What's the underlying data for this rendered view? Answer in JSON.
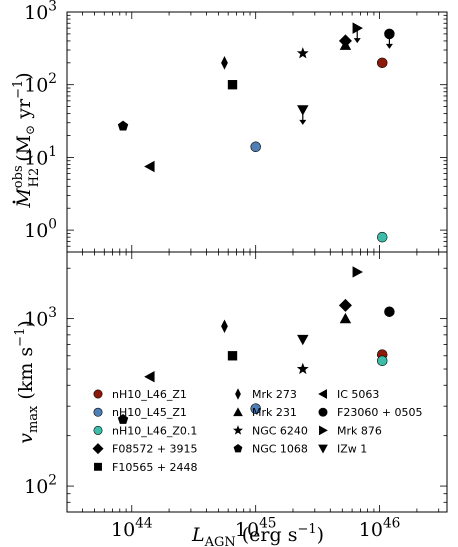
{
  "chart_data": [
    {
      "type": "scatter",
      "panel": "top",
      "ylabel": "Ṁ_H2^obs (M⊙ yr⁻¹)",
      "ylabel_parts": [
        "M",
        "obs",
        "H2",
        "(M",
        "yr",
        "−1",
        ")"
      ],
      "xscale": "log",
      "yscale": "log",
      "xlim": [
        3e+43,
        3.5e+46
      ],
      "ylim": [
        0.5,
        1000
      ],
      "y_ticks": [
        {
          "v": 1,
          "label": "10",
          "exp": "0"
        },
        {
          "v": 10,
          "label": "10",
          "exp": "1"
        },
        {
          "v": 100,
          "label": "10",
          "exp": "2"
        },
        {
          "v": 1000,
          "label": "10",
          "exp": "3"
        }
      ],
      "series": [
        {
          "name": "nH10_L46_Z1",
          "marker": "circle",
          "color": "#8B1A0A",
          "points": [
            [
              1.05e+46,
              200
            ]
          ]
        },
        {
          "name": "nH10_L45_Z1",
          "marker": "circle",
          "color": "#4F7FB5",
          "points": [
            [
              1e+45,
              14
            ]
          ]
        },
        {
          "name": "nH10_L46_Z0.1",
          "marker": "circle",
          "color": "#3DBDA8",
          "points": [
            [
              1.05e+46,
              0.8
            ]
          ]
        },
        {
          "name": "F08572 + 3915",
          "marker": "diamond",
          "color": "#000000",
          "points": [
            [
              5.3e+45,
              400
            ]
          ]
        },
        {
          "name": "F10565 + 2448",
          "marker": "square",
          "color": "#000000",
          "points": [
            [
              6.5e+44,
              100
            ]
          ]
        },
        {
          "name": "Mrk 273",
          "marker": "thin_diamond",
          "color": "#000000",
          "points": [
            [
              5.6e+44,
              200
            ]
          ]
        },
        {
          "name": "Mrk 231",
          "marker": "triangle_up",
          "color": "#000000",
          "points": [
            [
              5.3e+45,
              350
            ]
          ]
        },
        {
          "name": "NGC 6240",
          "marker": "star",
          "color": "#000000",
          "points": [
            [
              2.4e+45,
              270
            ]
          ]
        },
        {
          "name": "NGC 1068",
          "marker": "pentagon",
          "color": "#000000",
          "points": [
            [
              8.5e+43,
              27
            ]
          ]
        },
        {
          "name": "IC 5063",
          "marker": "triangle_left",
          "color": "#000000",
          "points": [
            [
              1.4e+44,
              7.5
            ]
          ]
        },
        {
          "name": "F23060 + 0505",
          "marker": "circle",
          "color": "#000000",
          "points": [
            [
              1.2e+46,
              500
            ]
          ],
          "upper_limit": true
        },
        {
          "name": "Mrk 876",
          "marker": "triangle_right",
          "color": "#000000",
          "points": [
            [
              6.6e+45,
              600
            ]
          ],
          "upper_limit": true
        },
        {
          "name": "IZw 1",
          "marker": "triangle_down",
          "color": "#000000",
          "points": [
            [
              2.4e+45,
              45
            ]
          ],
          "upper_limit": true
        }
      ]
    },
    {
      "type": "scatter",
      "panel": "bottom",
      "ylabel": "v_max (km s⁻¹)",
      "ylabel_parts": [
        "v",
        "max",
        "(km s",
        "−1",
        ")"
      ],
      "xlabel": "L_AGN (erg s⁻¹)",
      "xlabel_parts": [
        "L",
        "AGN",
        "(erg s",
        "−1",
        ")"
      ],
      "xscale": "log",
      "yscale": "log",
      "xlim": [
        3e+43,
        3.5e+46
      ],
      "ylim": [
        70,
        2500
      ],
      "x_ticks": [
        {
          "v": 1e+44,
          "label": "10",
          "exp": "44"
        },
        {
          "v": 1e+45,
          "label": "10",
          "exp": "45"
        },
        {
          "v": 1e+46,
          "label": "10",
          "exp": "46"
        }
      ],
      "y_ticks": [
        {
          "v": 100,
          "label": "10",
          "exp": "2"
        },
        {
          "v": 1000,
          "label": "10",
          "exp": "3"
        }
      ],
      "series": [
        {
          "name": "nH10_L46_Z1",
          "marker": "circle",
          "color": "#8B1A0A",
          "points": [
            [
              1.05e+46,
              610
            ]
          ]
        },
        {
          "name": "nH10_L45_Z1",
          "marker": "circle",
          "color": "#4F7FB5",
          "points": [
            [
              1e+45,
              290
            ]
          ]
        },
        {
          "name": "nH10_L46_Z0.1",
          "marker": "circle",
          "color": "#3DBDA8",
          "points": [
            [
              1.05e+46,
              560
            ]
          ]
        },
        {
          "name": "F08572 + 3915",
          "marker": "diamond",
          "color": "#000000",
          "points": [
            [
              5.3e+45,
              1200
            ]
          ]
        },
        {
          "name": "F10565 + 2448",
          "marker": "square",
          "color": "#000000",
          "points": [
            [
              6.5e+44,
              600
            ]
          ]
        },
        {
          "name": "Mrk 273",
          "marker": "thin_diamond",
          "color": "#000000",
          "points": [
            [
              5.6e+44,
              900
            ]
          ]
        },
        {
          "name": "Mrk 231",
          "marker": "triangle_up",
          "color": "#000000",
          "points": [
            [
              5.3e+45,
              1000
            ]
          ]
        },
        {
          "name": "NGC 6240",
          "marker": "star",
          "color": "#000000",
          "points": [
            [
              2.4e+45,
              500
            ]
          ]
        },
        {
          "name": "NGC 1068",
          "marker": "pentagon",
          "color": "#000000",
          "points": [
            [
              8.5e+43,
              250
            ]
          ]
        },
        {
          "name": "IC 5063",
          "marker": "triangle_left",
          "color": "#000000",
          "points": [
            [
              1.4e+44,
              450
            ]
          ]
        },
        {
          "name": "F23060 + 0505",
          "marker": "circle",
          "color": "#000000",
          "points": [
            [
              1.2e+46,
              1100
            ]
          ]
        },
        {
          "name": "Mrk 876",
          "marker": "triangle_right",
          "color": "#000000",
          "points": [
            [
              6.6e+45,
              1900
            ]
          ]
        },
        {
          "name": "IZw 1",
          "marker": "triangle_down",
          "color": "#000000",
          "points": [
            [
              2.4e+45,
              750
            ]
          ]
        }
      ]
    }
  ],
  "legend": {
    "position": "lower-left of bottom panel",
    "entries": [
      {
        "label": "nH10_L46_Z1",
        "marker": "circle",
        "color": "#8B1A0A"
      },
      {
        "label": "nH10_L45_Z1",
        "marker": "circle",
        "color": "#4F7FB5"
      },
      {
        "label": "nH10_L46_Z0.1",
        "marker": "circle",
        "color": "#3DBDA8"
      },
      {
        "label": "F08572 + 3915",
        "marker": "diamond",
        "color": "#000000"
      },
      {
        "label": "F10565 + 2448",
        "marker": "square",
        "color": "#000000"
      },
      {
        "label": "Mrk 273",
        "marker": "thin_diamond",
        "color": "#000000"
      },
      {
        "label": "Mrk 231",
        "marker": "triangle_up",
        "color": "#000000"
      },
      {
        "label": "NGC 6240",
        "marker": "star",
        "color": "#000000"
      },
      {
        "label": "NGC 1068",
        "marker": "pentagon",
        "color": "#000000"
      },
      {
        "label": "IC 5063",
        "marker": "triangle_left",
        "color": "#000000"
      },
      {
        "label": "F23060 + 0505",
        "marker": "circle",
        "color": "#000000"
      },
      {
        "label": "Mrk 876",
        "marker": "triangle_right",
        "color": "#000000"
      },
      {
        "label": "IZw 1",
        "marker": "triangle_down",
        "color": "#000000"
      }
    ]
  }
}
